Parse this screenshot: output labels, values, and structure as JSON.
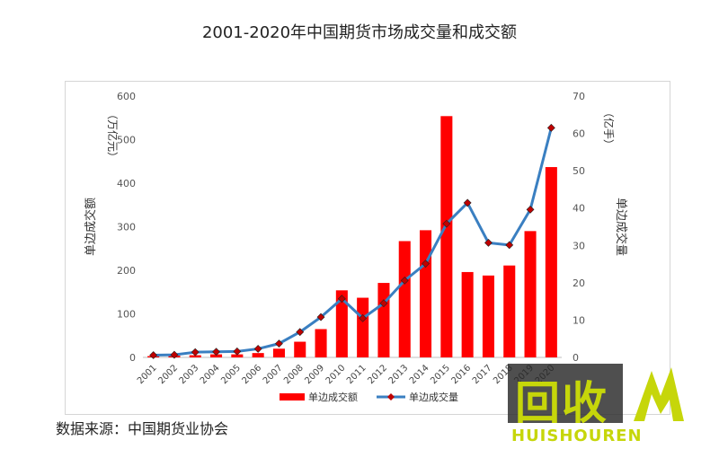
{
  "title": "2001-2020年中国期货市场成交量和成交额",
  "source": "数据来源：中国期货业协会",
  "watermark": {
    "cn": "回收",
    "en": "HUISHOUREN"
  },
  "chart_data": {
    "type": "bar+line",
    "categories": [
      "2001",
      "2002",
      "2003",
      "2004",
      "2005",
      "2006",
      "2007",
      "2008",
      "2009",
      "2010",
      "2011",
      "2012",
      "2013",
      "2014",
      "2015",
      "2016",
      "2017",
      "2018",
      "2019",
      "2020"
    ],
    "series": [
      {
        "name": "单边成交额",
        "type": "bar",
        "axis": "left",
        "color": "#ff0000",
        "values": [
          3,
          4,
          5,
          7,
          7,
          10,
          20,
          36,
          65,
          154,
          137,
          171,
          267,
          292,
          554,
          196,
          188,
          211,
          290,
          437
        ]
      },
      {
        "name": "单边成交量",
        "type": "line",
        "axis": "right",
        "color": "#3a7fc1",
        "marker_color": "#c00000",
        "values": [
          0.6,
          0.7,
          1.4,
          1.5,
          1.6,
          2.3,
          3.7,
          6.8,
          10.8,
          15.7,
          10.5,
          14.5,
          20.6,
          25.1,
          35.8,
          41.4,
          30.7,
          30.1,
          39.6,
          61.5
        ]
      }
    ],
    "yleft": {
      "label_cn": "单边成交额",
      "label_unit": "（万亿元）",
      "min": 0,
      "max": 600,
      "ticks": [
        0,
        100,
        200,
        300,
        400,
        500,
        600
      ]
    },
    "yright": {
      "label_cn": "单边成交量",
      "label_unit": "（亿手）",
      "min": 0,
      "max": 70,
      "ticks": [
        0,
        10,
        20,
        30,
        40,
        50,
        60,
        70
      ]
    },
    "legend_position": "bottom",
    "grid": false
  }
}
